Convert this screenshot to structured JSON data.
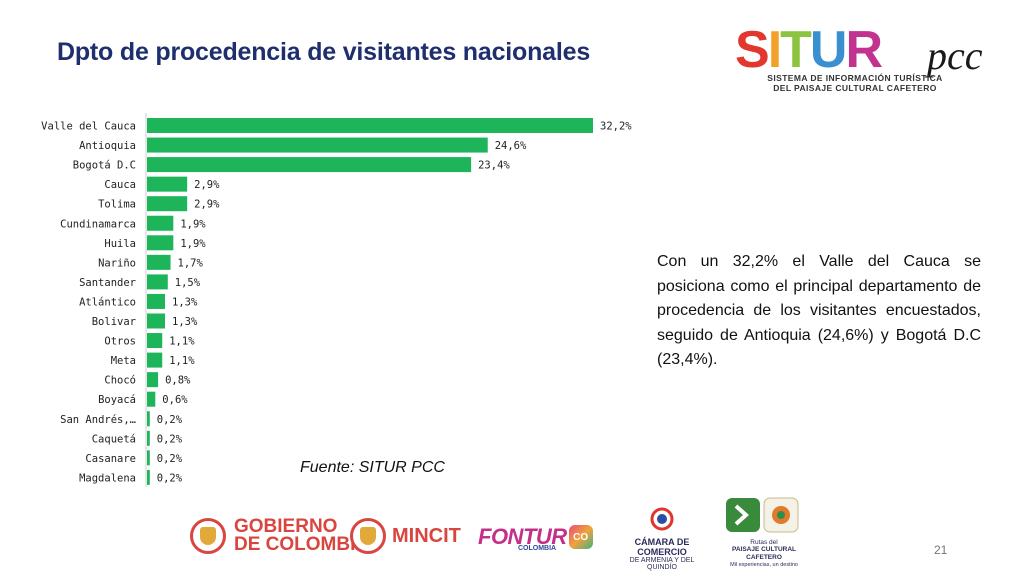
{
  "title": "Dpto de procedencia de visitantes nacionales",
  "description": "Con un 32,2% el Valle del Cauca se posiciona como el principal departamento de procedencia de los visitantes encuestados, seguido de Antioquia (24,6%) y Bogotá D.C (23,4%).",
  "source": "Fuente: SITUR PCC",
  "page_number": "21",
  "logo": {
    "letters": [
      "S",
      "I",
      "T",
      "U",
      "R"
    ],
    "letter_colors": [
      "#e1372f",
      "#f2a22b",
      "#8cc43f",
      "#3a8fd1",
      "#c2338f"
    ],
    "suffix": "pcc",
    "subtitle_line1": "SISTEMA DE INFORMACIÓN TURÍSTICA",
    "subtitle_line2": "DEL PAISAJE CULTURAL CAFETERO"
  },
  "footer": {
    "gobierno_line1": "GOBIERNO",
    "gobierno_line2": "DE COLOMBIA",
    "mincit": "MINCIT",
    "fontur": "FONTUR",
    "fontur_sub": "COLOMBIA",
    "fontur_badge": "CO",
    "camara_line1": "CÁMARA DE COMERCIO",
    "camara_line2": "DE ARMENIA Y DEL QUINDÍO",
    "rutas_line1": "Rutas del",
    "rutas_line2": "PAISAJE CULTURAL CAFETERO",
    "rutas_line3": "Mil experiencias, un destino"
  },
  "colors": {
    "bar": "#1db45a",
    "title": "#1f2f6e",
    "accent_red": "#d9453f"
  },
  "chart_data": {
    "type": "bar",
    "orientation": "horizontal",
    "categories": [
      "Valle del Cauca",
      "Antioquia",
      "Bogotá D.C",
      "Cauca",
      "Tolima",
      "Cundinamarca",
      "Huila",
      "Nariño",
      "Santander",
      "Atlántico",
      "Bolivar",
      "Otros",
      "Meta",
      "Chocó",
      "Boyacá",
      "San Andrés,…",
      "Caquetá",
      "Casanare",
      "Magdalena"
    ],
    "values": [
      32.2,
      24.6,
      23.4,
      2.9,
      2.9,
      1.9,
      1.9,
      1.7,
      1.5,
      1.3,
      1.3,
      1.1,
      1.1,
      0.8,
      0.6,
      0.2,
      0.2,
      0.2,
      0.2
    ],
    "labels": [
      "32,2%",
      "24,6%",
      "23,4%",
      "2,9%",
      "2,9%",
      "1,9%",
      "1,9%",
      "1,7%",
      "1,5%",
      "1,3%",
      "1,3%",
      "1,1%",
      "1,1%",
      "0,8%",
      "0,6%",
      "0,2%",
      "0,2%",
      "0,2%",
      "0,2%"
    ],
    "xlim": [
      0,
      32.2
    ],
    "grid": false,
    "legend": "none"
  }
}
